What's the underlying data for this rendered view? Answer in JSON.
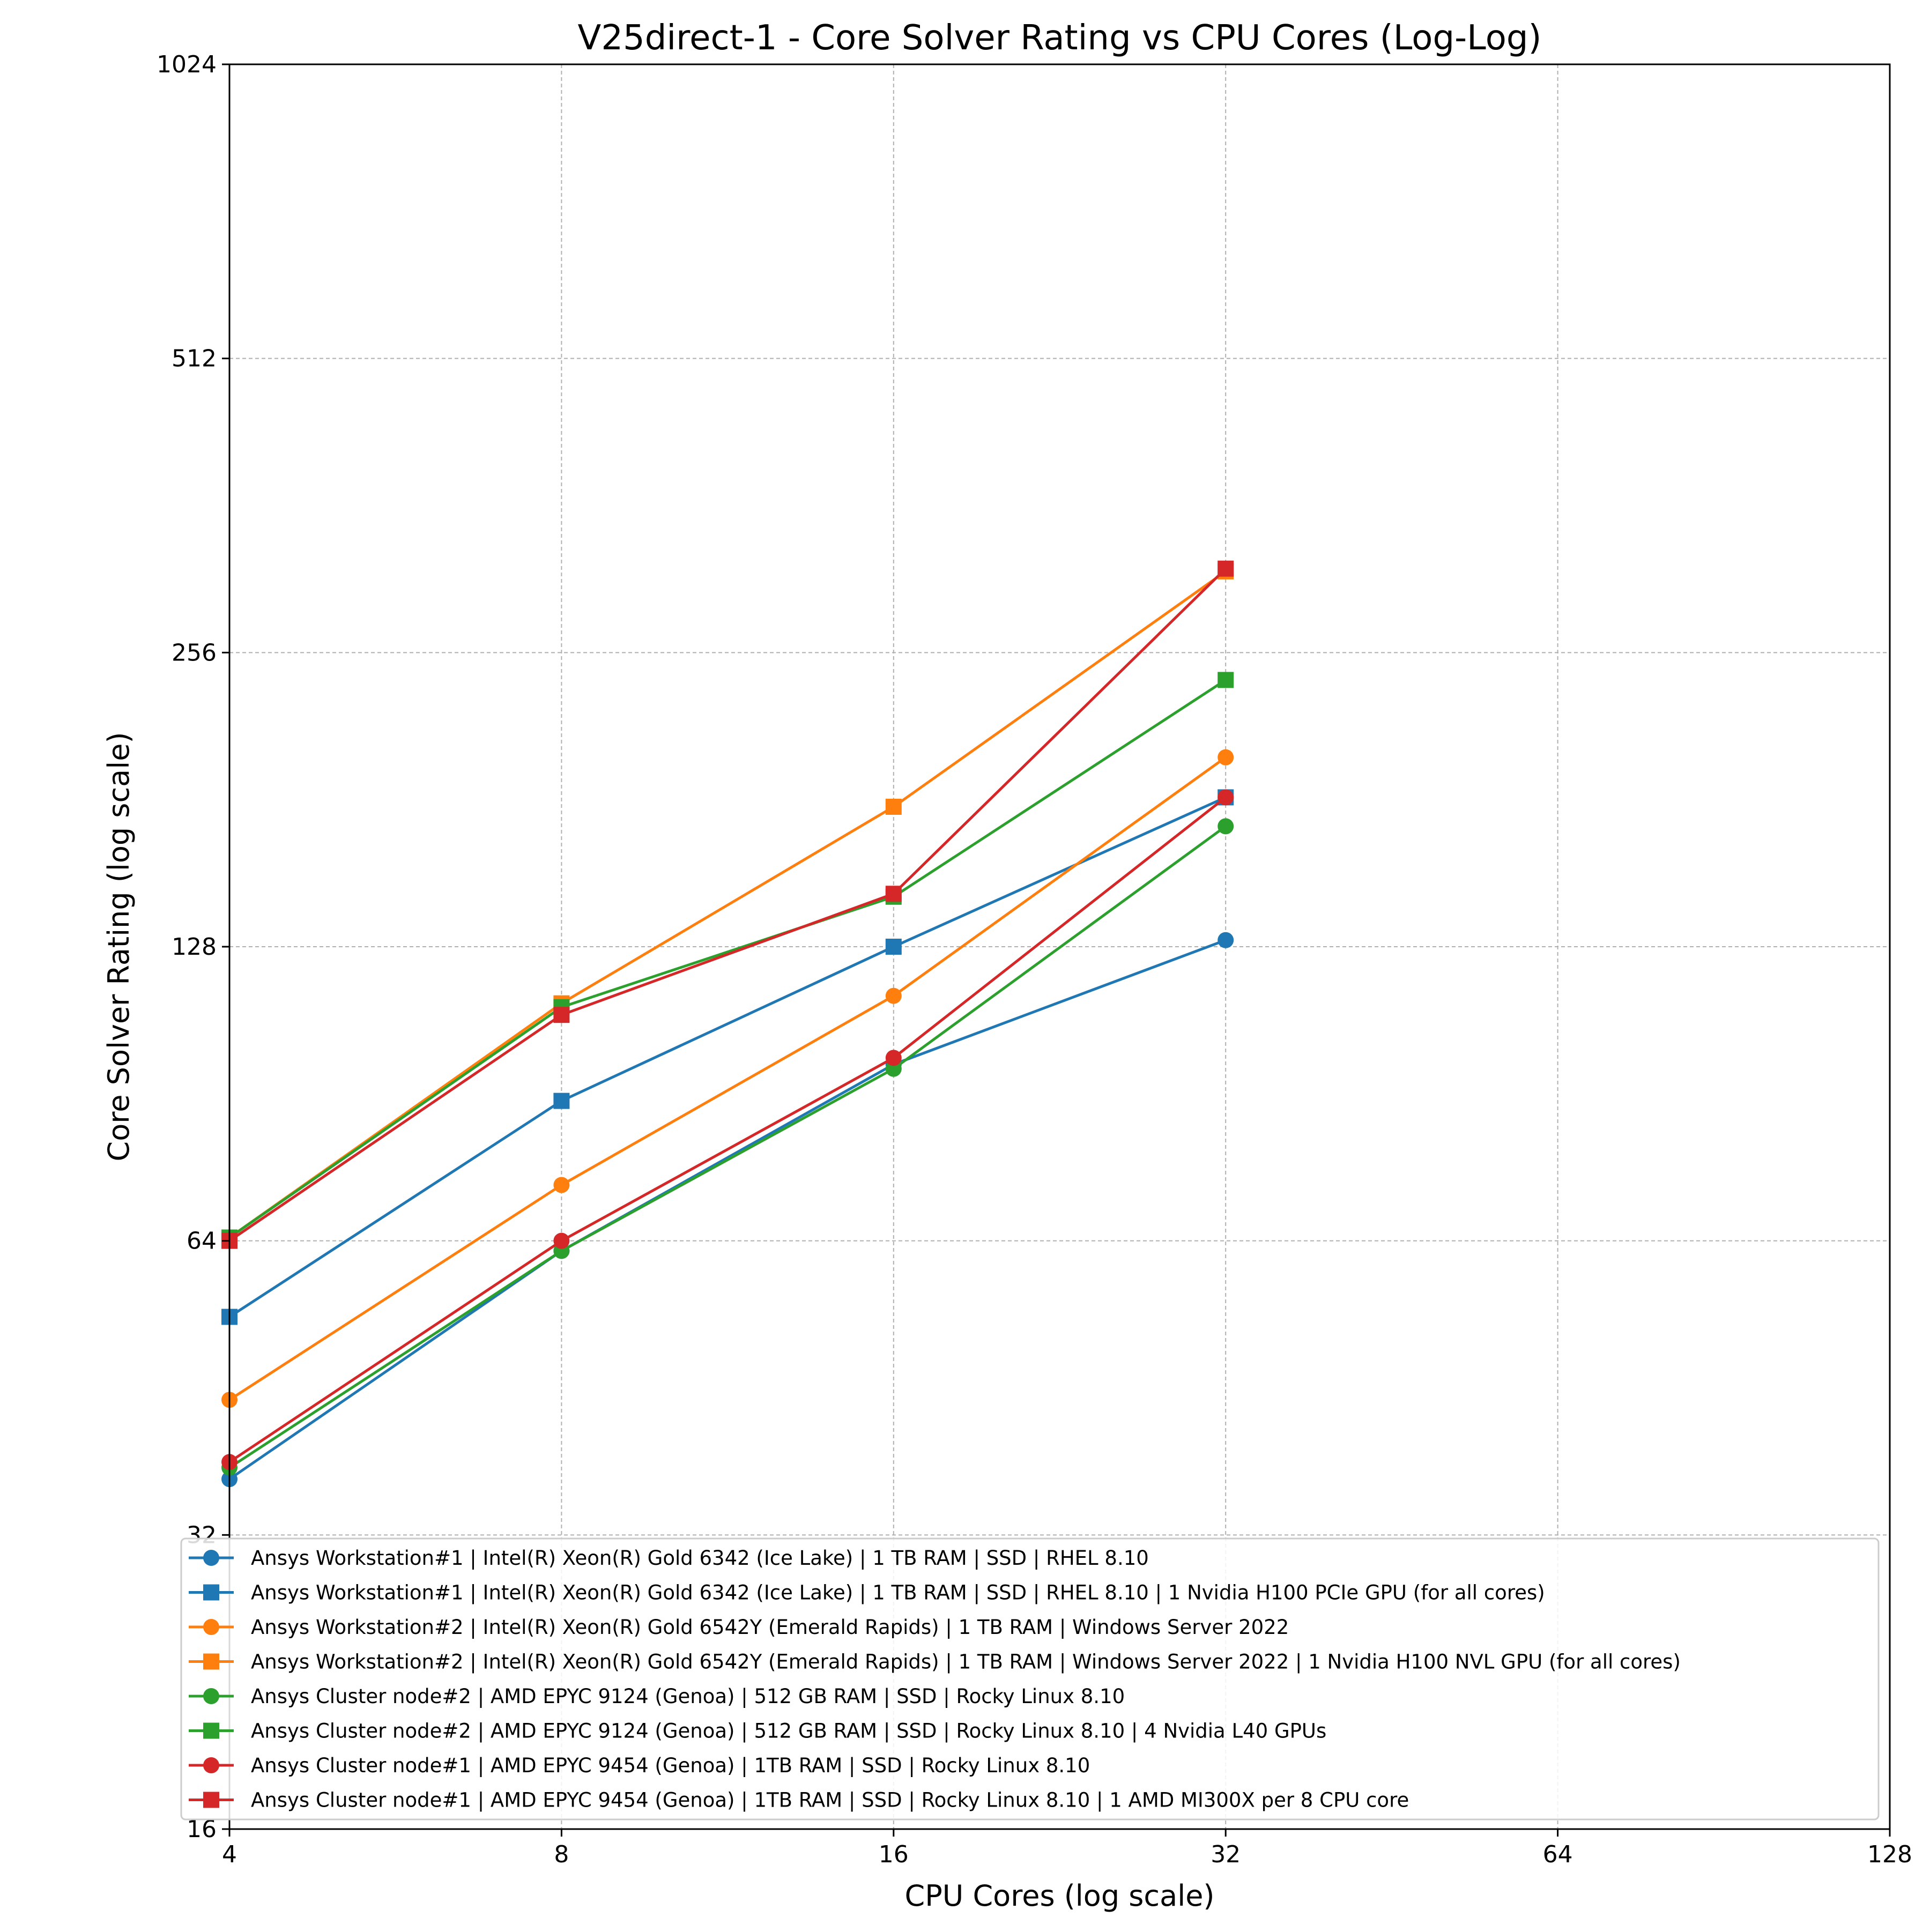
{
  "chart_data": {
    "type": "line",
    "title": "V25direct-1 - Core Solver Rating vs CPU Cores (Log-Log)",
    "xlabel": "CPU Cores (log scale)",
    "ylabel": "Core Solver Rating (log scale)",
    "xscale": "log2",
    "yscale": "log2",
    "xlim": [
      4,
      128
    ],
    "ylim": [
      16,
      1024
    ],
    "xticks": [
      "4",
      "8",
      "16",
      "32",
      "64",
      "128"
    ],
    "yticks": [
      "16",
      "32",
      "64",
      "128",
      "256",
      "512",
      "1024"
    ],
    "grid": true,
    "legend_position": "bottom",
    "x": [
      4,
      8,
      16,
      32
    ],
    "series": [
      {
        "name": "Ansys Workstation#1 | Intel(R) Xeon(R) Gold 6342 (Ice Lake) | 1 TB RAM | SSD | RHEL 8.10",
        "color": "#1f77b4",
        "marker": "circle",
        "values": [
          36.5,
          62.5,
          97,
          130
        ]
      },
      {
        "name": "Ansys Workstation#1 | Intel(R) Xeon(R) Gold 6342 (Ice Lake) | 1 TB RAM | SSD | RHEL 8.10 | 1 Nvidia H100 PCIe GPU (for all cores)",
        "color": "#1f77b4",
        "marker": "square",
        "values": [
          53.5,
          89,
          128,
          182
        ]
      },
      {
        "name": "Ansys Workstation#2 | Intel(R) Xeon(R) Gold 6542Y (Emerald Rapids) | 1 TB RAM | Windows Server 2022",
        "color": "#ff7f0e",
        "marker": "circle",
        "values": [
          44,
          73,
          114,
          200
        ]
      },
      {
        "name": "Ansys Workstation#2 | Intel(R) Xeon(R) Gold 6542Y (Emerald Rapids) | 1 TB RAM | Windows Server 2022 | 1 Nvidia H100 NVL GPU (for all cores)",
        "color": "#ff7f0e",
        "marker": "square",
        "values": [
          64.5,
          112,
          178,
          310
        ]
      },
      {
        "name": "Ansys Cluster node#2 | AMD EPYC 9124 (Genoa) | 512 GB RAM | SSD | Rocky Linux 8.10",
        "color": "#2ca02c",
        "marker": "circle",
        "values": [
          37.5,
          62.5,
          96,
          170
        ]
      },
      {
        "name": "Ansys Cluster node#2 | AMD EPYC 9124 (Genoa) | 512 GB RAM | SSD | Rocky Linux 8.10 | 4 Nvidia L40 GPUs",
        "color": "#2ca02c",
        "marker": "square",
        "values": [
          64.5,
          111,
          144,
          240
        ]
      },
      {
        "name": "Ansys Cluster node#1 | AMD EPYC 9454 (Genoa) | 1TB  RAM | SSD | Rocky Linux 8.10",
        "color": "#d62728",
        "marker": "circle",
        "values": [
          38,
          64,
          98.5,
          182
        ]
      },
      {
        "name": "Ansys Cluster node#1 | AMD EPYC 9454 (Genoa) | 1TB  RAM | SSD | Rocky Linux 8.10 | 1 AMD MI300X per 8 CPU core",
        "color": "#d62728",
        "marker": "square",
        "values": [
          64,
          109,
          145,
          312
        ]
      }
    ]
  }
}
